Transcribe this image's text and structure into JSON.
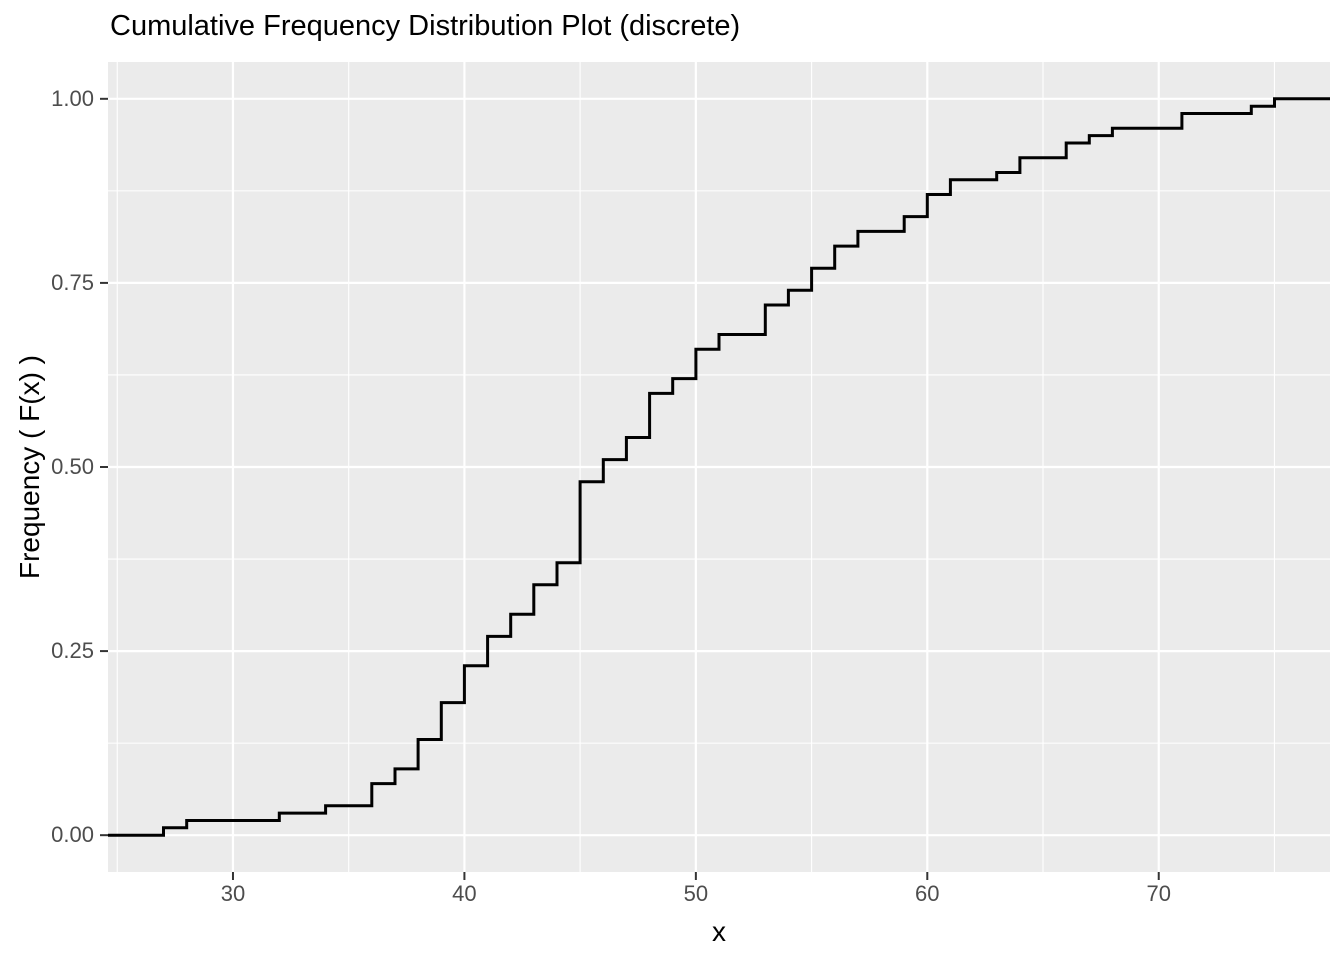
{
  "chart_data": {
    "type": "line",
    "subtype": "ecdf-step",
    "title": "Cumulative Frequency Distribution Plot (discrete)",
    "xlabel": "x",
    "ylabel": "Frequency ( F(x) )",
    "xlim": [
      24.6,
      77.4
    ],
    "ylim": [
      -0.05,
      1.05
    ],
    "x_tick_values": [
      30,
      40,
      50,
      60,
      70
    ],
    "x_tick_labels": [
      "30",
      "40",
      "50",
      "60",
      "70"
    ],
    "y_tick_values": [
      0.0,
      0.25,
      0.5,
      0.75,
      1.0
    ],
    "y_tick_labels": [
      "0.00",
      "0.25",
      "0.50",
      "0.75",
      "1.00"
    ],
    "grid": {
      "show": true,
      "major_x": [
        30,
        40,
        50,
        60,
        70
      ],
      "minor_x": [
        25,
        35,
        45,
        55,
        65,
        75
      ],
      "major_y": [
        0.0,
        0.25,
        0.5,
        0.75,
        1.0
      ],
      "minor_y": [
        0.125,
        0.375,
        0.625,
        0.875
      ]
    },
    "legend": "none",
    "line_extends_to_panel_edges": true,
    "steps": [
      {
        "x": 27,
        "F": 0.01
      },
      {
        "x": 28,
        "F": 0.02
      },
      {
        "x": 32,
        "F": 0.03
      },
      {
        "x": 34,
        "F": 0.04
      },
      {
        "x": 36,
        "F": 0.07
      },
      {
        "x": 37,
        "F": 0.09
      },
      {
        "x": 38,
        "F": 0.13
      },
      {
        "x": 39,
        "F": 0.18
      },
      {
        "x": 40,
        "F": 0.23
      },
      {
        "x": 41,
        "F": 0.27
      },
      {
        "x": 42,
        "F": 0.3
      },
      {
        "x": 43,
        "F": 0.34
      },
      {
        "x": 44,
        "F": 0.37
      },
      {
        "x": 45,
        "F": 0.48
      },
      {
        "x": 46,
        "F": 0.51
      },
      {
        "x": 47,
        "F": 0.54
      },
      {
        "x": 48,
        "F": 0.6
      },
      {
        "x": 49,
        "F": 0.62
      },
      {
        "x": 50,
        "F": 0.66
      },
      {
        "x": 51,
        "F": 0.68
      },
      {
        "x": 53,
        "F": 0.72
      },
      {
        "x": 54,
        "F": 0.74
      },
      {
        "x": 55,
        "F": 0.77
      },
      {
        "x": 56,
        "F": 0.8
      },
      {
        "x": 57,
        "F": 0.82
      },
      {
        "x": 59,
        "F": 0.84
      },
      {
        "x": 60,
        "F": 0.87
      },
      {
        "x": 61,
        "F": 0.89
      },
      {
        "x": 63,
        "F": 0.9
      },
      {
        "x": 64,
        "F": 0.92
      },
      {
        "x": 66,
        "F": 0.94
      },
      {
        "x": 67,
        "F": 0.95
      },
      {
        "x": 68,
        "F": 0.96
      },
      {
        "x": 71,
        "F": 0.98
      },
      {
        "x": 74,
        "F": 0.99
      },
      {
        "x": 75,
        "F": 1.0
      }
    ],
    "colors": {
      "panel_background": "#EBEBEB",
      "grid": "#FFFFFF",
      "line": "#000000",
      "tick_text": "#4D4D4D",
      "tick_mark": "#333333",
      "title_text": "#000000",
      "figure_background": "#FFFFFF"
    }
  }
}
